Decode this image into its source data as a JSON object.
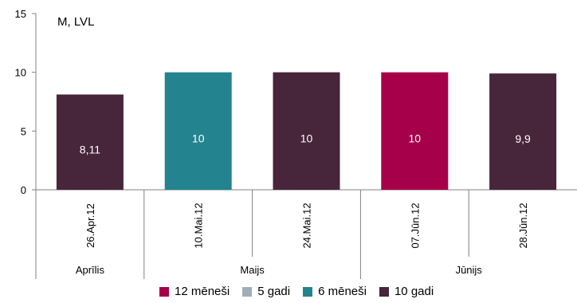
{
  "chart_data": {
    "type": "bar",
    "unit_label": "M, LVL",
    "categories": [
      "26.Apr.12",
      "10.Mai.12",
      "24.Mai.12",
      "07.Jūn.12",
      "28.Jūn.12"
    ],
    "values": [
      8.11,
      10,
      10,
      10,
      9.9
    ],
    "value_labels": [
      "8,11",
      "10",
      "10",
      "10",
      "9,9"
    ],
    "bar_series": [
      "10 gadi",
      "6 mēneši",
      "10 gadi",
      "12 mēneši",
      "10 gadi"
    ],
    "month_groups": [
      {
        "label": "Aprīlis",
        "count": 1
      },
      {
        "label": "Maijs",
        "count": 2
      },
      {
        "label": "Jūnijs",
        "count": 2
      }
    ],
    "ylim": [
      0,
      15
    ],
    "yticks": [
      0,
      5,
      10,
      15
    ],
    "legend": [
      {
        "name": "12 mēneši",
        "color": "#a6004a"
      },
      {
        "name": "5 gadi",
        "color": "#a0aeba"
      },
      {
        "name": "6 mēneši",
        "color": "#23838f"
      },
      {
        "name": "10 gadi",
        "color": "#47253a"
      }
    ],
    "legend_position": "bottom",
    "grid": false
  }
}
